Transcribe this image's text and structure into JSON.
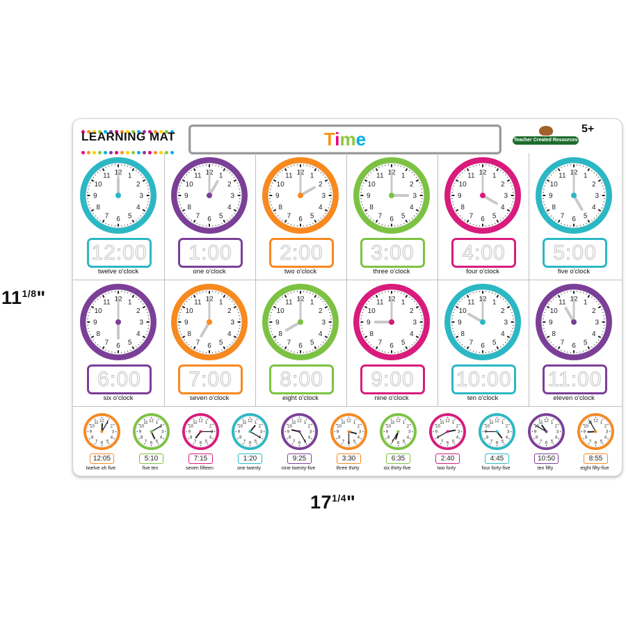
{
  "dimensions": {
    "height_whole": "11",
    "height_num": "1",
    "height_den": "8",
    "width_whole": "17",
    "width_num": "1",
    "width_den": "4"
  },
  "mat": {
    "brand": "LEARNING MAT",
    "title": "Time",
    "publisher": "Teacher Created Resources",
    "age": "5+",
    "title_colors": [
      "#f7941d",
      "#e6007e",
      "#8dc63f",
      "#00aeef"
    ],
    "dot_colors": [
      "#e6007e",
      "#f7941d",
      "#ffd200",
      "#8dc63f",
      "#00aeef",
      "#7b3f98",
      "#e6007e",
      "#f7941d",
      "#ffd200",
      "#8dc63f",
      "#00aeef",
      "#7b3f98",
      "#e6007e",
      "#f7941d",
      "#ffd200",
      "#8dc63f",
      "#00aeef"
    ]
  },
  "hour_clocks": [
    {
      "digital": "12:00",
      "label": "twelve o'clock",
      "hour": 12,
      "minute": 0,
      "color": "#2bb8c4"
    },
    {
      "digital": "1:00",
      "label": "one o'clock",
      "hour": 1,
      "minute": 0,
      "color": "#7b3f98"
    },
    {
      "digital": "2:00",
      "label": "two o'clock",
      "hour": 2,
      "minute": 0,
      "color": "#f7891f"
    },
    {
      "digital": "3:00",
      "label": "three o'clock",
      "hour": 3,
      "minute": 0,
      "color": "#7cc242"
    },
    {
      "digital": "4:00",
      "label": "four o'clock",
      "hour": 4,
      "minute": 0,
      "color": "#d81b7c"
    },
    {
      "digital": "5:00",
      "label": "five o'clock",
      "hour": 5,
      "minute": 0,
      "color": "#2bb8c4"
    },
    {
      "digital": "6:00",
      "label": "six o'clock",
      "hour": 6,
      "minute": 0,
      "color": "#7b3f98"
    },
    {
      "digital": "7:00",
      "label": "seven o'clock",
      "hour": 7,
      "minute": 0,
      "color": "#f7891f"
    },
    {
      "digital": "8:00",
      "label": "eight o'clock",
      "hour": 8,
      "minute": 0,
      "color": "#7cc242"
    },
    {
      "digital": "9:00",
      "label": "nine o'clock",
      "hour": 9,
      "minute": 0,
      "color": "#d81b7c"
    },
    {
      "digital": "10:00",
      "label": "ten o'clock",
      "hour": 10,
      "minute": 0,
      "color": "#2bb8c4"
    },
    {
      "digital": "11:00",
      "label": "eleven o'clock",
      "hour": 11,
      "minute": 0,
      "color": "#7b3f98"
    }
  ],
  "minute_clocks": [
    {
      "digital": "12:05",
      "label": "twelve oh five",
      "hour": 12,
      "minute": 5,
      "color": "#f7891f"
    },
    {
      "digital": "5:10",
      "label": "five ten",
      "hour": 5,
      "minute": 10,
      "color": "#7cc242"
    },
    {
      "digital": "7:15",
      "label": "seven fifteen",
      "hour": 7,
      "minute": 15,
      "color": "#d81b7c"
    },
    {
      "digital": "1:20",
      "label": "one twenty",
      "hour": 1,
      "minute": 20,
      "color": "#2bb8c4"
    },
    {
      "digital": "9:25",
      "label": "nine twenty-five",
      "hour": 9,
      "minute": 25,
      "color": "#7b3f98"
    },
    {
      "digital": "3:30",
      "label": "three thirty",
      "hour": 3,
      "minute": 30,
      "color": "#f7891f"
    },
    {
      "digital": "6:35",
      "label": "six thirty-five",
      "hour": 6,
      "minute": 35,
      "color": "#7cc242"
    },
    {
      "digital": "2:40",
      "label": "two forty",
      "hour": 2,
      "minute": 40,
      "color": "#d81b7c"
    },
    {
      "digital": "4:45",
      "label": "four forty-five",
      "hour": 4,
      "minute": 45,
      "color": "#2bb8c4"
    },
    {
      "digital": "10:50",
      "label": "ten fifty",
      "hour": 10,
      "minute": 50,
      "color": "#7b3f98"
    },
    {
      "digital": "8:55",
      "label": "eight fifty-five",
      "hour": 8,
      "minute": 55,
      "color": "#f7891f"
    }
  ]
}
